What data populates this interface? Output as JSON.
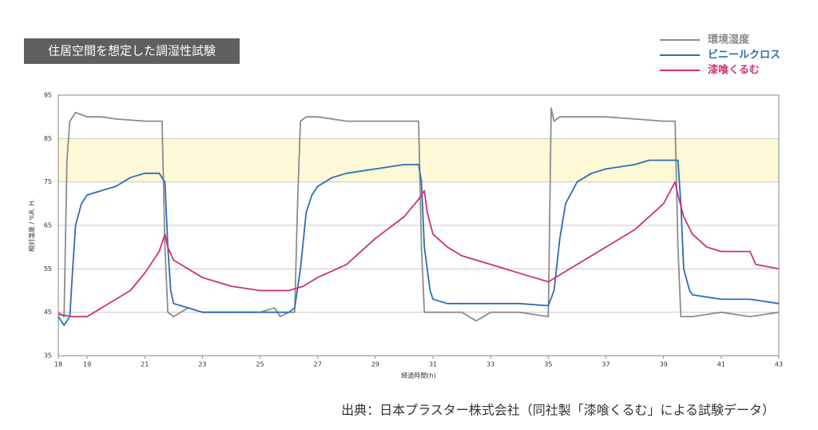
{
  "chart_data": {
    "type": "line",
    "title": "住居空間を想定した調湿性試験",
    "source": "出典：日本プラスター株式会社（同社製「漆喰くるむ」による試験データ）",
    "x_label": "経過時間(h)",
    "y_label": "相対湿度 / %R. H.",
    "xlim": [
      18,
      43
    ],
    "xticks": [
      18,
      19,
      21,
      23,
      25,
      27,
      29,
      31,
      33,
      35,
      37,
      39,
      41,
      43
    ],
    "ylim": [
      35,
      95
    ],
    "yticks": [
      35,
      45,
      55,
      65,
      75,
      85,
      95
    ],
    "grid": true,
    "legend": "top-right",
    "highlight_band": [
      75,
      85
    ],
    "highlight_color": "#fdf8d6",
    "series": [
      {
        "name": "環境湿度",
        "color": "#8c8c8c",
        "x": [
          18,
          18.2,
          18.3,
          18.4,
          18.6,
          19,
          19.5,
          20,
          21,
          21.6,
          21.7,
          21.8,
          22,
          22.5,
          23,
          24,
          25,
          25.5,
          25.7,
          26,
          26.2,
          26.3,
          26.4,
          26.6,
          27,
          28,
          29,
          30,
          30.5,
          30.6,
          30.7,
          31,
          32,
          32.5,
          33,
          34,
          35,
          35.1,
          35.2,
          35.4,
          36,
          37,
          38,
          39,
          39.4,
          39.5,
          39.6,
          40,
          41,
          42,
          43
        ],
        "values": [
          45,
          44,
          80,
          89,
          91,
          90,
          90,
          89.5,
          89,
          89,
          60,
          45,
          44,
          46,
          45,
          45,
          45,
          46,
          44,
          45,
          45,
          70,
          89,
          90,
          90,
          89,
          89,
          89,
          89,
          60,
          45,
          45,
          45,
          43,
          45,
          45,
          44,
          92,
          89,
          90,
          90,
          90,
          89.5,
          89,
          89,
          60,
          44,
          44,
          45,
          44,
          45
        ]
      },
      {
        "name": "ビニールクロス",
        "color": "#2e6db4",
        "x": [
          18,
          18.2,
          18.4,
          18.5,
          18.6,
          18.8,
          19,
          19.5,
          20,
          20.5,
          21,
          21.5,
          21.7,
          21.8,
          21.9,
          22,
          22.5,
          23,
          24,
          25,
          26,
          26.2,
          26.4,
          26.6,
          26.8,
          27,
          27.5,
          28,
          29,
          30,
          30.5,
          30.6,
          30.7,
          30.9,
          31,
          31.5,
          32,
          33,
          34,
          35,
          35.2,
          35.4,
          35.6,
          36,
          36.5,
          37,
          38,
          38.5,
          39,
          39.5,
          39.6,
          39.7,
          39.9,
          40,
          41,
          42,
          43
        ],
        "values": [
          44,
          42,
          44,
          55,
          65,
          70,
          72,
          73,
          74,
          76,
          77,
          77,
          75,
          60,
          50,
          47,
          46,
          45,
          45,
          45,
          45,
          46,
          55,
          68,
          72,
          74,
          76,
          77,
          78,
          79,
          79,
          75,
          60,
          50,
          48,
          47,
          47,
          47,
          47,
          46.5,
          50,
          62,
          70,
          75,
          77,
          78,
          79,
          80,
          80,
          80,
          70,
          55,
          50,
          49,
          48,
          48,
          47
        ]
      },
      {
        "name": "漆喰くるむ",
        "color": "#cc3377",
        "x": [
          18,
          18.5,
          19,
          19.5,
          20,
          20.5,
          21,
          21.5,
          21.7,
          21.8,
          22,
          22.5,
          23,
          24,
          25,
          26,
          26.5,
          27,
          28,
          29,
          30,
          30.5,
          30.7,
          30.8,
          31,
          31.5,
          32,
          33,
          34,
          35,
          36,
          37,
          38,
          39,
          39.4,
          39.5,
          39.7,
          40,
          40.5,
          41,
          42,
          42.2,
          43
        ],
        "values": [
          44.5,
          44,
          44,
          46,
          48,
          50,
          54,
          59,
          63,
          60,
          57,
          55,
          53,
          51,
          50,
          50,
          51,
          53,
          56,
          62,
          67,
          71,
          73,
          68,
          63,
          60,
          58,
          56,
          54,
          52,
          56,
          60,
          64,
          70,
          75,
          72,
          67,
          63,
          60,
          59,
          59,
          56,
          55
        ]
      }
    ]
  }
}
